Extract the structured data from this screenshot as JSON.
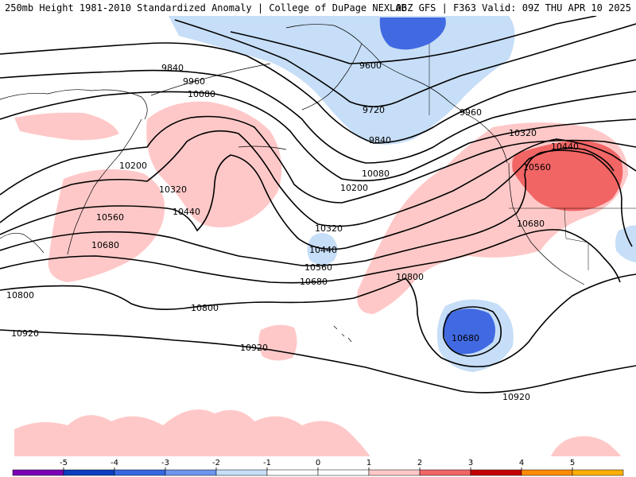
{
  "header": {
    "left": "250mb Height 1981-2010 Standardized Anomaly | College of DuPage NEXLAB",
    "right": "06Z GFS | F363 Valid: 09Z THU APR 10 2025"
  },
  "colors": {
    "strong_negative": "#4169e1",
    "weak_negative": "#c6def7",
    "weak_positive": "#ffc8c8",
    "strong_positive": "#f26565",
    "contour": "#000000",
    "coast": "#000000"
  },
  "contour_labels": [
    "9600",
    "9720",
    "9840",
    "9960",
    "10080",
    "10200",
    "10320",
    "10440",
    "10560",
    "10680",
    "10800",
    "10920"
  ],
  "map_labels": {
    "l9840a": "9840",
    "l9960a": "9960",
    "l10080a": "10080",
    "l9600": "9600",
    "l9720": "9720",
    "l9960b": "9960",
    "l9840b": "9840",
    "l10080b": "10080",
    "l10200a": "10200",
    "l10200b": "10200",
    "l10320a": "10320",
    "l10320b": "10320",
    "l10320c": "10320",
    "l10440a": "10440",
    "l10440b": "10440",
    "l10440c": "10440",
    "l10560a": "10560",
    "l10560b": "10560",
    "l10560c": "10560",
    "l10680a": "10680",
    "l10680b": "10680",
    "l10680c": "10680",
    "l10680d": "10680",
    "l10800a": "10800",
    "l10800b": "10800",
    "l10800c": "10800",
    "l10920a": "10920",
    "l10920b": "10920",
    "l10920c": "10920"
  },
  "colorbar": {
    "ticks": [
      "-5",
      "-4",
      "-3",
      "-2",
      "-1",
      "0",
      "1",
      "2",
      "3",
      "4",
      "5"
    ],
    "colors": [
      "#7a00b5",
      "#0a3fbf",
      "#3567e0",
      "#6d95ef",
      "#c6def7",
      "#ffffff",
      "#ffffff",
      "#ffc8c8",
      "#f26565",
      "#c40000",
      "#ff8c00",
      "#ffb000"
    ]
  }
}
